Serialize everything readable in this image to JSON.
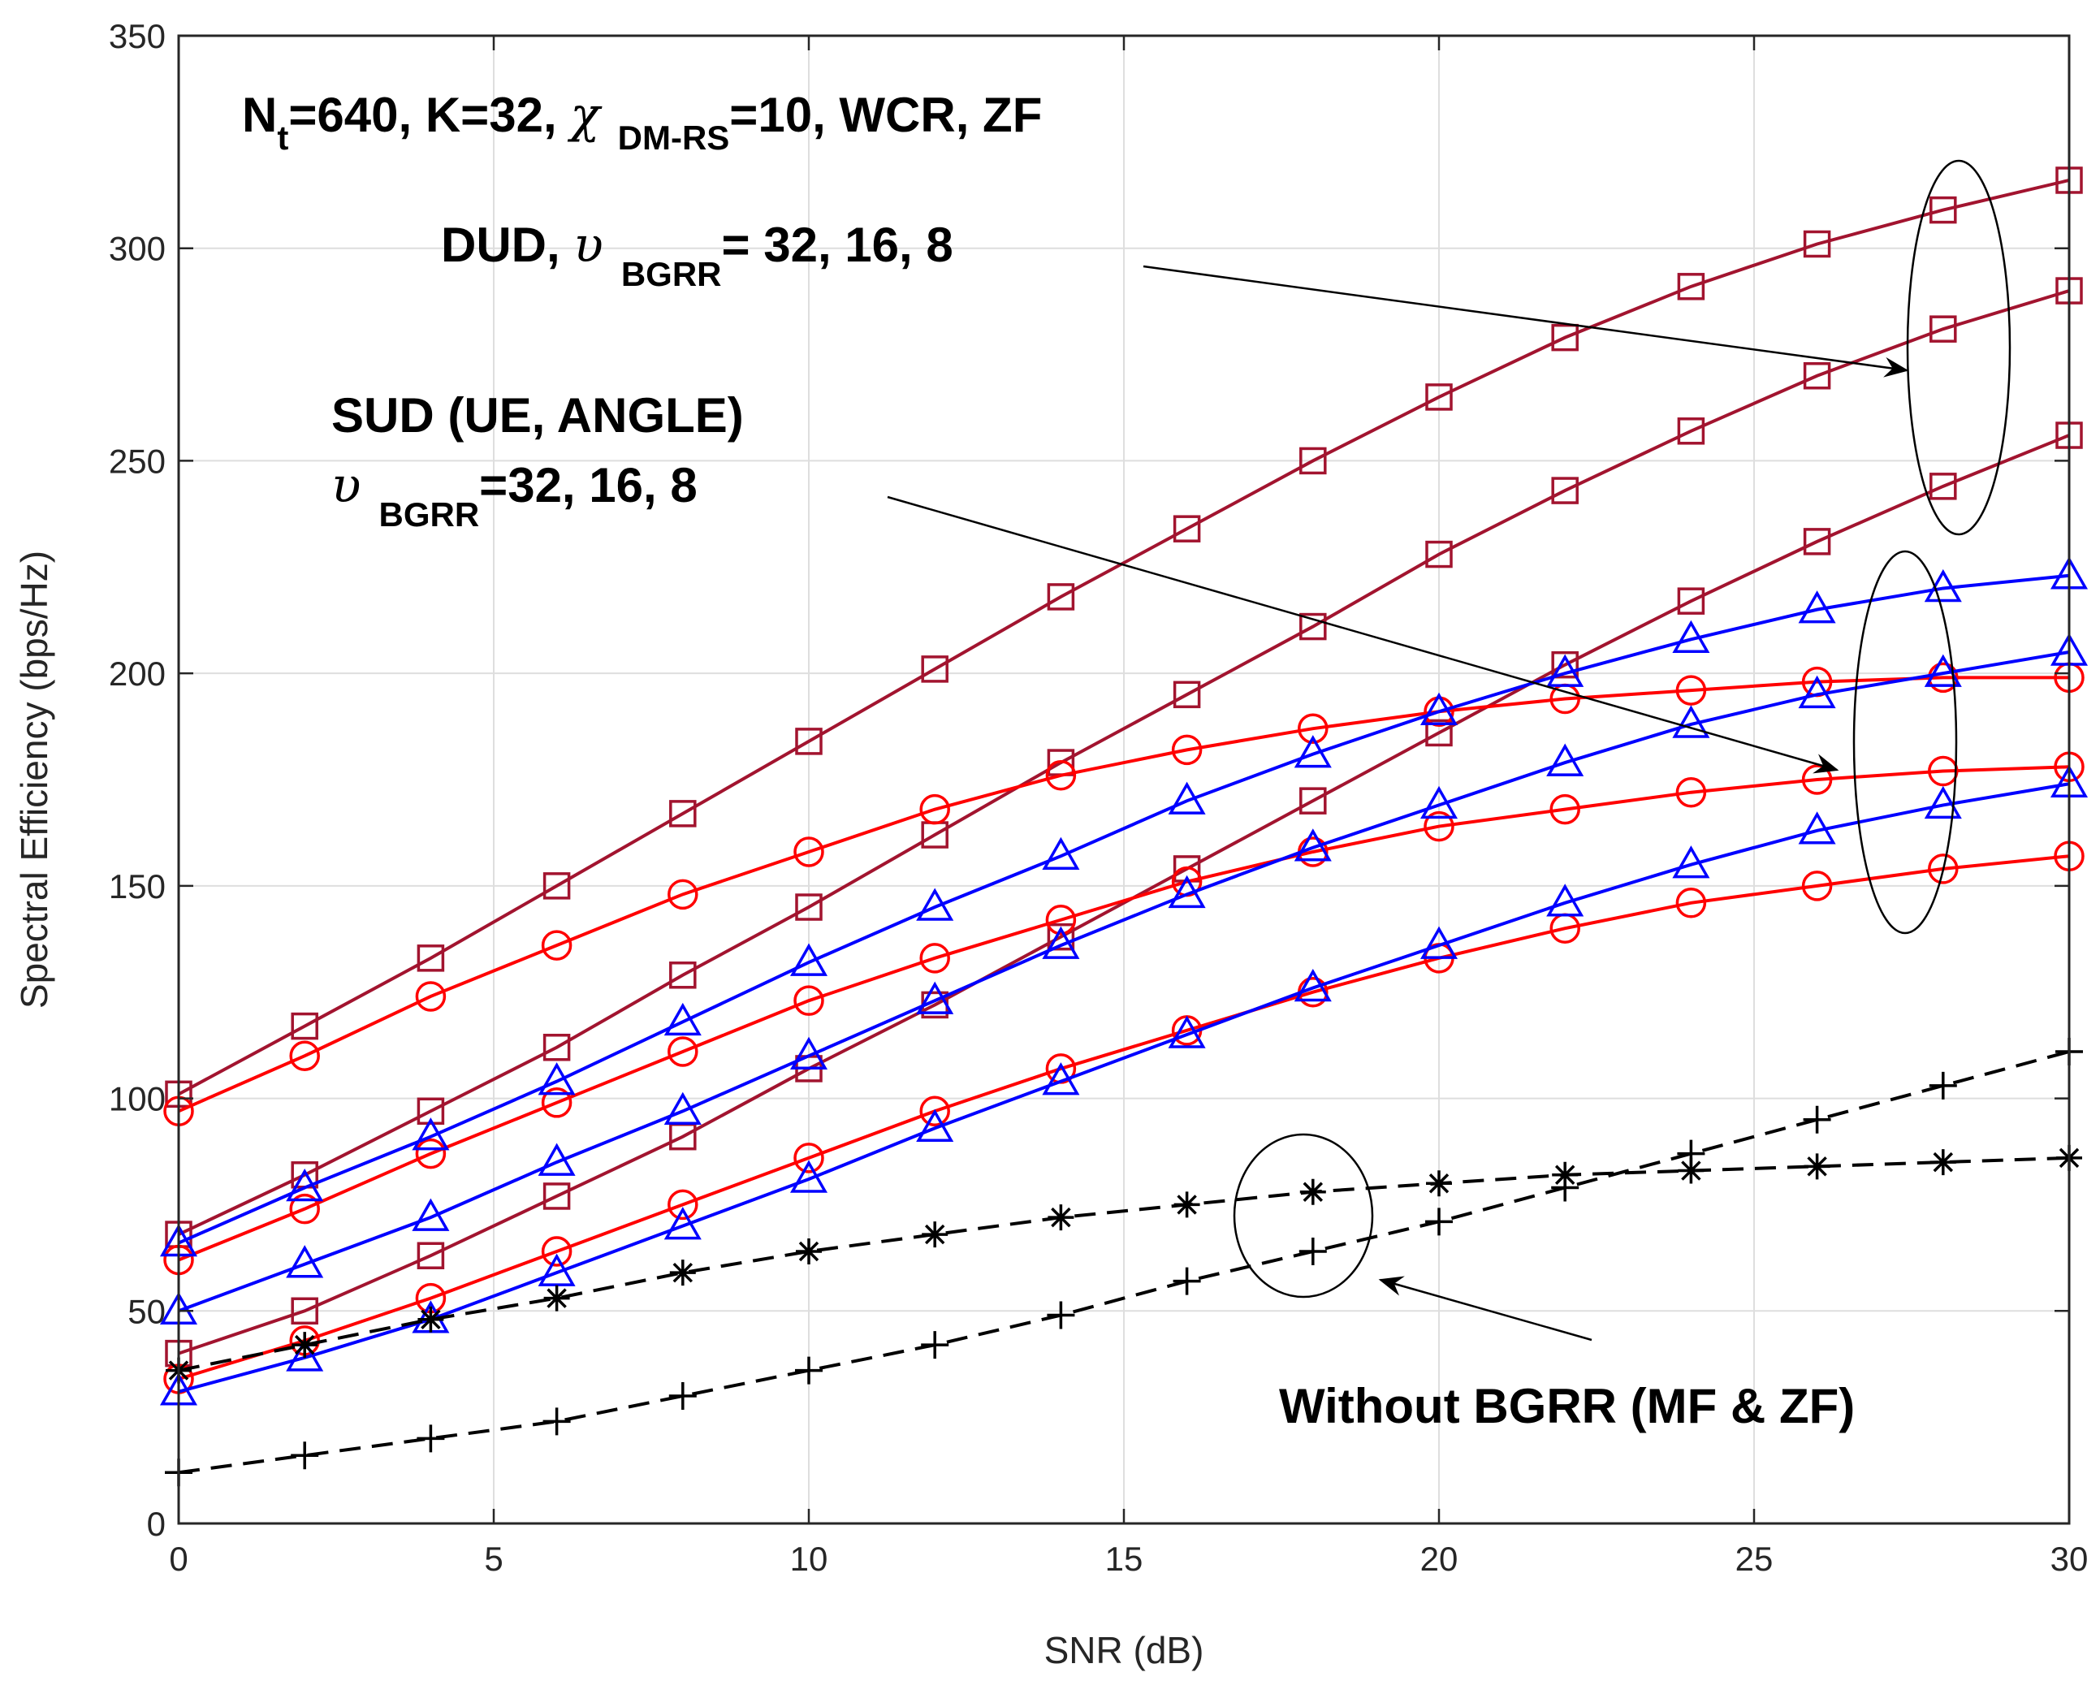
{
  "chart_data": {
    "type": "line",
    "title": "",
    "xlabel": "SNR (dB)",
    "ylabel": "Spectral Efficiency (bps/Hz)",
    "xlim": [
      0,
      30
    ],
    "ylim": [
      0,
      350
    ],
    "xticks": [
      0,
      5,
      10,
      15,
      20,
      25,
      30
    ],
    "yticks": [
      0,
      50,
      100,
      150,
      200,
      250,
      300,
      350
    ],
    "grid": true,
    "x": [
      0,
      2,
      4,
      6,
      8,
      10,
      12,
      14,
      16,
      18,
      20,
      22,
      24,
      26,
      28,
      30
    ],
    "series": [
      {
        "name": "DUD, BGRR=32",
        "color": "#A2142F",
        "marker": "square",
        "dash": "solid",
        "values": [
          101,
          117,
          133,
          150,
          167,
          184,
          201,
          218,
          234,
          250,
          265,
          279,
          291,
          301,
          309,
          316
        ]
      },
      {
        "name": "DUD, BGRR=16",
        "color": "#A2142F",
        "marker": "square",
        "dash": "solid",
        "values": [
          68,
          82,
          97,
          112,
          129,
          145,
          162,
          179,
          195,
          211,
          228,
          243,
          257,
          270,
          281,
          290
        ]
      },
      {
        "name": "DUD, BGRR=8",
        "color": "#A2142F",
        "marker": "square",
        "dash": "solid",
        "values": [
          40,
          50,
          63,
          77,
          91,
          107,
          122,
          138,
          154,
          170,
          186,
          202,
          217,
          231,
          244,
          256
        ]
      },
      {
        "name": "SUD ANGLE, BGRR=32",
        "color": "#FF0000",
        "marker": "circle",
        "dash": "solid",
        "values": [
          97,
          110,
          124,
          136,
          148,
          158,
          168,
          176,
          182,
          187,
          191,
          194,
          196,
          198,
          199,
          199
        ]
      },
      {
        "name": "SUD ANGLE, BGRR=16",
        "color": "#FF0000",
        "marker": "circle",
        "dash": "solid",
        "values": [
          62,
          74,
          87,
          99,
          111,
          123,
          133,
          142,
          151,
          158,
          164,
          168,
          172,
          175,
          177,
          178
        ]
      },
      {
        "name": "SUD ANGLE, BGRR=8",
        "color": "#FF0000",
        "marker": "circle",
        "dash": "solid",
        "values": [
          34,
          43,
          53,
          64,
          75,
          86,
          97,
          107,
          116,
          125,
          133,
          140,
          146,
          150,
          154,
          157
        ]
      },
      {
        "name": "SUD UE, BGRR=32",
        "color": "#0000FF",
        "marker": "triangle",
        "dash": "solid",
        "values": [
          66,
          79,
          91,
          104,
          118,
          132,
          145,
          157,
          170,
          181,
          191,
          200,
          208,
          215,
          220,
          223
        ]
      },
      {
        "name": "SUD UE, BGRR=16",
        "color": "#0000FF",
        "marker": "triangle",
        "dash": "solid",
        "values": [
          50,
          61,
          72,
          85,
          97,
          110,
          123,
          136,
          148,
          159,
          169,
          179,
          188,
          195,
          200,
          205
        ]
      },
      {
        "name": "SUD UE, BGRR=8",
        "color": "#0000FF",
        "marker": "triangle",
        "dash": "solid",
        "values": [
          31,
          39,
          48,
          59,
          70,
          81,
          93,
          104,
          115,
          126,
          136,
          146,
          155,
          163,
          169,
          174
        ]
      },
      {
        "name": "Without BGRR, ZF",
        "color": "#000000",
        "marker": "asterisk",
        "dash": "dashed",
        "values": [
          36,
          42,
          48,
          53,
          59,
          64,
          68,
          72,
          75,
          78,
          80,
          82,
          83,
          84,
          85,
          86
        ]
      },
      {
        "name": "Without BGRR, MF",
        "color": "#000000",
        "marker": "plus",
        "dash": "dashed",
        "values": [
          12,
          16,
          20,
          24,
          30,
          36,
          42,
          49,
          57,
          64,
          71,
          79,
          87,
          95,
          103,
          111
        ]
      }
    ],
    "annotations": {
      "params": {
        "prefix": "N",
        "prefix_sub": "t",
        "mid": "=640, K=32, ",
        "greek": "χ",
        "greek_sub": "DM-RS",
        "suffix": "=10, WCR, ZF"
      },
      "dud": {
        "prefix": "DUD, ",
        "greek": "υ",
        "greek_sub": "BGRR",
        "suffix": "= 32, 16, 8"
      },
      "sud_line1": "SUD (UE, ANGLE)",
      "sud_line2": {
        "greek": "υ",
        "greek_sub": "BGRR",
        "suffix": "=32, 16, 8"
      },
      "without": "Without BGRR (MF & ZF)"
    }
  }
}
